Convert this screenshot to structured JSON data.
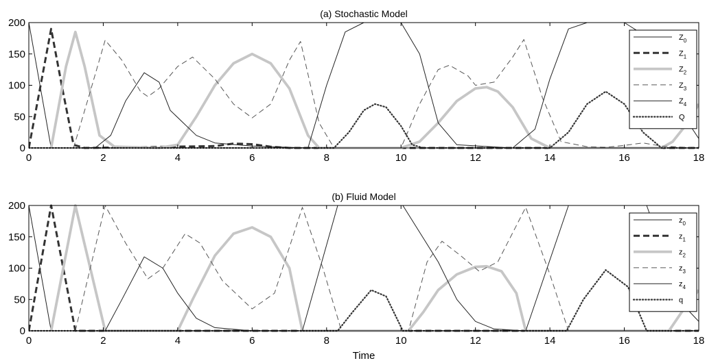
{
  "xlabel": "Time",
  "charts": [
    {
      "title": "(a) Stochastic Model",
      "type": "line",
      "xlim": [
        0,
        18
      ],
      "ylim": [
        0,
        200
      ],
      "xticks": [
        0,
        2,
        4,
        6,
        8,
        10,
        12,
        14,
        16,
        18
      ],
      "yticks": [
        0,
        50,
        100,
        150,
        200
      ],
      "legend_position": "top-right",
      "series": [
        {
          "name": "Z0",
          "name_main": "Z",
          "name_sub": "0",
          "style": "thin-solid",
          "points": [
            [
              0,
              200
            ],
            [
              0.6,
              0
            ],
            [
              18,
              0
            ]
          ]
        },
        {
          "name": "Z1",
          "name_main": "Z",
          "name_sub": "1",
          "style": "thick-dashed",
          "points": [
            [
              0,
              0
            ],
            [
              0.3,
              95
            ],
            [
              0.6,
              190
            ],
            [
              0.9,
              95
            ],
            [
              1.2,
              5
            ],
            [
              1.5,
              0
            ],
            [
              5,
              3
            ],
            [
              5.5,
              7
            ],
            [
              6,
              6
            ],
            [
              6.5,
              2
            ],
            [
              7,
              0
            ],
            [
              18,
              0
            ]
          ]
        },
        {
          "name": "Z2",
          "name_main": "Z",
          "name_sub": "2",
          "style": "thick-gray",
          "points": [
            [
              0.6,
              0
            ],
            [
              1.0,
              130
            ],
            [
              1.25,
              185
            ],
            [
              1.5,
              130
            ],
            [
              1.9,
              20
            ],
            [
              2.3,
              2
            ],
            [
              3.5,
              0
            ],
            [
              4,
              5
            ],
            [
              4.5,
              50
            ],
            [
              5,
              100
            ],
            [
              5.5,
              135
            ],
            [
              6,
              150
            ],
            [
              6.5,
              135
            ],
            [
              7,
              95
            ],
            [
              7.5,
              20
            ],
            [
              7.8,
              0
            ],
            [
              10,
              0
            ],
            [
              10.5,
              10
            ],
            [
              11,
              40
            ],
            [
              11.5,
              75
            ],
            [
              12,
              95
            ],
            [
              12.3,
              97
            ],
            [
              12.6,
              90
            ],
            [
              13,
              65
            ],
            [
              13.5,
              15
            ],
            [
              14,
              0
            ],
            [
              17,
              0
            ],
            [
              17.3,
              10
            ],
            [
              17.7,
              40
            ],
            [
              18,
              70
            ]
          ]
        },
        {
          "name": "Z3",
          "name_main": "Z",
          "name_sub": "3",
          "style": "thin-dashed",
          "points": [
            [
              0,
              0
            ],
            [
              1.2,
              0
            ],
            [
              1.6,
              80
            ],
            [
              2.05,
              172
            ],
            [
              2.5,
              140
            ],
            [
              3,
              90
            ],
            [
              3.2,
              82
            ],
            [
              3.5,
              95
            ],
            [
              4,
              130
            ],
            [
              4.4,
              145
            ],
            [
              5,
              110
            ],
            [
              5.5,
              70
            ],
            [
              6,
              48
            ],
            [
              6.5,
              70
            ],
            [
              7,
              140
            ],
            [
              7.3,
              170
            ],
            [
              7.8,
              40
            ],
            [
              8.2,
              0
            ],
            [
              10,
              0
            ],
            [
              10.5,
              70
            ],
            [
              11,
              125
            ],
            [
              11.3,
              132
            ],
            [
              11.8,
              115
            ],
            [
              12,
              100
            ],
            [
              12.5,
              105
            ],
            [
              13,
              145
            ],
            [
              13.3,
              173
            ],
            [
              13.8,
              80
            ],
            [
              14.3,
              10
            ],
            [
              15,
              2
            ],
            [
              15.5,
              1
            ],
            [
              16,
              4
            ],
            [
              16.5,
              8
            ],
            [
              17,
              3
            ],
            [
              18,
              0
            ]
          ]
        },
        {
          "name": "Z4",
          "name_main": "Z",
          "name_sub": "4",
          "style": "thin-solid",
          "points": [
            [
              0,
              0
            ],
            [
              1.5,
              0
            ],
            [
              1.8,
              1
            ],
            [
              2.2,
              20
            ],
            [
              2.6,
              75
            ],
            [
              3.1,
              120
            ],
            [
              3.5,
              105
            ],
            [
              3.8,
              60
            ],
            [
              4.5,
              20
            ],
            [
              5,
              8
            ],
            [
              6,
              3
            ],
            [
              7.5,
              0
            ],
            [
              8,
              100
            ],
            [
              8.5,
              185
            ],
            [
              9,
              200
            ],
            [
              10,
              200
            ],
            [
              10.5,
              150
            ],
            [
              11,
              40
            ],
            [
              11.5,
              5
            ],
            [
              13,
              0
            ],
            [
              13.6,
              30
            ],
            [
              14,
              110
            ],
            [
              14.5,
              190
            ],
            [
              15,
              200
            ],
            [
              16,
              200
            ],
            [
              16.4,
              185
            ],
            [
              17,
              120
            ],
            [
              17.5,
              60
            ],
            [
              18,
              15
            ]
          ]
        },
        {
          "name": "Q",
          "name_main": "Q",
          "name_sub": "",
          "style": "dotted",
          "points": [
            [
              0,
              0
            ],
            [
              8.2,
              0
            ],
            [
              8.6,
              25
            ],
            [
              9,
              60
            ],
            [
              9.3,
              70
            ],
            [
              9.6,
              65
            ],
            [
              10,
              35
            ],
            [
              10.3,
              5
            ],
            [
              10.6,
              0
            ],
            [
              14,
              0
            ],
            [
              14.5,
              25
            ],
            [
              15,
              70
            ],
            [
              15.5,
              90
            ],
            [
              16,
              70
            ],
            [
              16.5,
              25
            ],
            [
              17,
              0
            ],
            [
              18,
              0
            ]
          ]
        }
      ]
    },
    {
      "title": "(b) Fluid Model",
      "type": "line",
      "xlim": [
        0,
        18
      ],
      "ylim": [
        0,
        200
      ],
      "xticks": [
        0,
        2,
        4,
        6,
        8,
        10,
        12,
        14,
        16,
        18
      ],
      "yticks": [
        0,
        50,
        100,
        150,
        200
      ],
      "legend_position": "top-right",
      "series": [
        {
          "name": "z0",
          "name_main": "z",
          "name_sub": "0",
          "style": "thin-solid",
          "points": [
            [
              0,
              200
            ],
            [
              0.6,
              0
            ],
            [
              18,
              0
            ]
          ]
        },
        {
          "name": "z1",
          "name_main": "z",
          "name_sub": "1",
          "style": "thick-dashed",
          "points": [
            [
              0,
              0
            ],
            [
              0.6,
              200
            ],
            [
              1.25,
              0
            ],
            [
              18,
              0
            ]
          ]
        },
        {
          "name": "z2",
          "name_main": "z",
          "name_sub": "2",
          "style": "thick-gray",
          "points": [
            [
              0.6,
              0
            ],
            [
              1.25,
              200
            ],
            [
              2.05,
              0
            ],
            [
              4,
              0
            ],
            [
              4.4,
              50
            ],
            [
              5,
              120
            ],
            [
              5.5,
              155
            ],
            [
              6,
              165
            ],
            [
              6.5,
              150
            ],
            [
              7,
              100
            ],
            [
              7.35,
              0
            ],
            [
              10.2,
              0
            ],
            [
              10.6,
              30
            ],
            [
              11,
              65
            ],
            [
              11.5,
              90
            ],
            [
              12,
              102
            ],
            [
              12.3,
              103
            ],
            [
              12.7,
              95
            ],
            [
              13.1,
              60
            ],
            [
              13.35,
              0
            ],
            [
              17.2,
              0
            ],
            [
              17.6,
              35
            ],
            [
              18,
              65
            ]
          ]
        },
        {
          "name": "z3",
          "name_main": "z",
          "name_sub": "3",
          "style": "thin-dashed",
          "points": [
            [
              1.25,
              0
            ],
            [
              2.05,
              200
            ],
            [
              2.6,
              140
            ],
            [
              3.2,
              83
            ],
            [
              3.6,
              100
            ],
            [
              4.2,
              155
            ],
            [
              4.6,
              140
            ],
            [
              5.2,
              80
            ],
            [
              6,
              35
            ],
            [
              6.6,
              60
            ],
            [
              7.35,
              197
            ],
            [
              7.9,
              100
            ],
            [
              8.4,
              0
            ],
            [
              10.2,
              0
            ],
            [
              10.7,
              110
            ],
            [
              11.1,
              143
            ],
            [
              11.6,
              120
            ],
            [
              12.1,
              95
            ],
            [
              12.6,
              110
            ],
            [
              13.35,
              197
            ],
            [
              14,
              90
            ],
            [
              14.5,
              0
            ],
            [
              18,
              0
            ]
          ]
        },
        {
          "name": "z4",
          "name_main": "z",
          "name_sub": "4",
          "style": "thin-solid",
          "points": [
            [
              0,
              0
            ],
            [
              2.05,
              0
            ],
            [
              2.5,
              50
            ],
            [
              3.1,
              118
            ],
            [
              3.6,
              100
            ],
            [
              4,
              60
            ],
            [
              4.5,
              20
            ],
            [
              5,
              5
            ],
            [
              6,
              0
            ],
            [
              7.35,
              0
            ],
            [
              8.3,
              200
            ],
            [
              10.05,
              200
            ],
            [
              11,
              110
            ],
            [
              11.5,
              50
            ],
            [
              12,
              15
            ],
            [
              12.5,
              3
            ],
            [
              13.35,
              0
            ],
            [
              14.5,
              200
            ],
            [
              16.6,
              200
            ],
            [
              17.2,
              100
            ],
            [
              17.6,
              40
            ],
            [
              18,
              15
            ]
          ]
        },
        {
          "name": "q",
          "name_main": "q",
          "name_sub": "",
          "style": "dotted",
          "points": [
            [
              0,
              0
            ],
            [
              8.3,
              0
            ],
            [
              8.7,
              30
            ],
            [
              9.2,
              65
            ],
            [
              9.6,
              55
            ],
            [
              10.05,
              0
            ],
            [
              14.45,
              0
            ],
            [
              14.9,
              50
            ],
            [
              15.5,
              97
            ],
            [
              16.1,
              70
            ],
            [
              16.6,
              0
            ],
            [
              18,
              0
            ]
          ]
        }
      ]
    }
  ]
}
